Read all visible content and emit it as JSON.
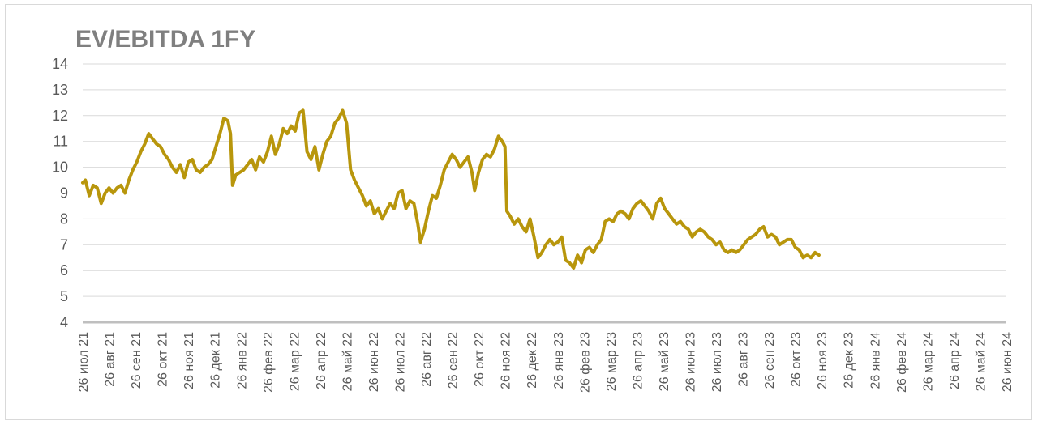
{
  "chart_data": {
    "type": "line",
    "title": "EV/EBITDA 1FY",
    "ylim": [
      4,
      14
    ],
    "yticks": [
      "4",
      "5",
      "6",
      "7",
      "8",
      "9",
      "10",
      "11",
      "12",
      "13",
      "14"
    ],
    "grid": true,
    "line_color": "#b8960c",
    "x_categories": [
      "26 июл 21",
      "26 авг 21",
      "26 сен 21",
      "26 окт 21",
      "26 ноя 21",
      "26 дек 21",
      "26 янв 22",
      "26 фев 22",
      "26 мар 22",
      "26 апр 22",
      "26 май 22",
      "26 июн 22",
      "26 июл 22",
      "26 авг 22",
      "26 сен 22",
      "26 окт 22",
      "26 ноя 22",
      "26 дек 22",
      "26 янв 23",
      "26 фев 23",
      "26 мар 23",
      "26 апр 23",
      "26 май 23",
      "26 июн 23",
      "26 июл 23",
      "26 авг 23",
      "26 сен 23",
      "26 окт 23",
      "26 ноя 23",
      "26 дек 23",
      "26 янв 24",
      "26 фев 24",
      "26 мар 24",
      "26 апр 24",
      "26 май 24",
      "26 июн 24"
    ],
    "series": [
      {
        "values": [
          [
            0.0,
            9.4
          ],
          [
            0.1,
            9.5
          ],
          [
            0.25,
            8.9
          ],
          [
            0.4,
            9.3
          ],
          [
            0.55,
            9.2
          ],
          [
            0.7,
            8.6
          ],
          [
            0.85,
            9.0
          ],
          [
            1.0,
            9.2
          ],
          [
            1.15,
            9.0
          ],
          [
            1.3,
            9.2
          ],
          [
            1.45,
            9.3
          ],
          [
            1.6,
            9.0
          ],
          [
            1.75,
            9.5
          ],
          [
            1.9,
            9.9
          ],
          [
            2.05,
            10.2
          ],
          [
            2.2,
            10.6
          ],
          [
            2.35,
            10.9
          ],
          [
            2.5,
            11.3
          ],
          [
            2.65,
            11.1
          ],
          [
            2.8,
            10.9
          ],
          [
            2.95,
            10.8
          ],
          [
            3.1,
            10.5
          ],
          [
            3.25,
            10.3
          ],
          [
            3.4,
            10.0
          ],
          [
            3.55,
            9.8
          ],
          [
            3.7,
            10.1
          ],
          [
            3.85,
            9.6
          ],
          [
            4.0,
            10.2
          ],
          [
            4.15,
            10.3
          ],
          [
            4.3,
            9.9
          ],
          [
            4.45,
            9.8
          ],
          [
            4.6,
            10.0
          ],
          [
            4.75,
            10.1
          ],
          [
            4.9,
            10.3
          ],
          [
            5.05,
            10.8
          ],
          [
            5.2,
            11.3
          ],
          [
            5.35,
            11.9
          ],
          [
            5.5,
            11.8
          ],
          [
            5.6,
            11.3
          ],
          [
            5.68,
            9.3
          ],
          [
            5.8,
            9.7
          ],
          [
            5.95,
            9.8
          ],
          [
            6.1,
            9.9
          ],
          [
            6.25,
            10.1
          ],
          [
            6.4,
            10.3
          ],
          [
            6.55,
            9.9
          ],
          [
            6.7,
            10.4
          ],
          [
            6.85,
            10.2
          ],
          [
            7.0,
            10.6
          ],
          [
            7.15,
            11.2
          ],
          [
            7.3,
            10.5
          ],
          [
            7.45,
            10.9
          ],
          [
            7.6,
            11.5
          ],
          [
            7.75,
            11.3
          ],
          [
            7.9,
            11.6
          ],
          [
            8.05,
            11.4
          ],
          [
            8.2,
            12.1
          ],
          [
            8.35,
            12.2
          ],
          [
            8.5,
            10.6
          ],
          [
            8.65,
            10.3
          ],
          [
            8.8,
            10.8
          ],
          [
            8.95,
            9.9
          ],
          [
            9.1,
            10.5
          ],
          [
            9.25,
            11.0
          ],
          [
            9.4,
            11.2
          ],
          [
            9.55,
            11.7
          ],
          [
            9.7,
            11.9
          ],
          [
            9.85,
            12.2
          ],
          [
            10.0,
            11.7
          ],
          [
            10.15,
            9.9
          ],
          [
            10.3,
            9.5
          ],
          [
            10.45,
            9.2
          ],
          [
            10.6,
            8.9
          ],
          [
            10.75,
            8.5
          ],
          [
            10.9,
            8.7
          ],
          [
            11.05,
            8.2
          ],
          [
            11.2,
            8.4
          ],
          [
            11.35,
            8.0
          ],
          [
            11.5,
            8.3
          ],
          [
            11.65,
            8.6
          ],
          [
            11.8,
            8.4
          ],
          [
            11.95,
            9.0
          ],
          [
            12.1,
            9.1
          ],
          [
            12.25,
            8.4
          ],
          [
            12.4,
            8.7
          ],
          [
            12.55,
            8.6
          ],
          [
            12.7,
            7.8
          ],
          [
            12.8,
            7.1
          ],
          [
            12.95,
            7.6
          ],
          [
            13.1,
            8.3
          ],
          [
            13.25,
            8.9
          ],
          [
            13.4,
            8.8
          ],
          [
            13.55,
            9.3
          ],
          [
            13.7,
            9.9
          ],
          [
            13.85,
            10.2
          ],
          [
            14.0,
            10.5
          ],
          [
            14.15,
            10.3
          ],
          [
            14.3,
            10.0
          ],
          [
            14.45,
            10.2
          ],
          [
            14.6,
            10.4
          ],
          [
            14.75,
            9.8
          ],
          [
            14.85,
            9.1
          ],
          [
            15.0,
            9.8
          ],
          [
            15.15,
            10.3
          ],
          [
            15.3,
            10.5
          ],
          [
            15.45,
            10.4
          ],
          [
            15.6,
            10.7
          ],
          [
            15.75,
            11.2
          ],
          [
            15.9,
            11.0
          ],
          [
            16.0,
            10.8
          ],
          [
            16.07,
            8.3
          ],
          [
            16.2,
            8.1
          ],
          [
            16.35,
            7.8
          ],
          [
            16.5,
            8.0
          ],
          [
            16.65,
            7.7
          ],
          [
            16.8,
            7.5
          ],
          [
            16.95,
            8.0
          ],
          [
            17.1,
            7.3
          ],
          [
            17.25,
            6.5
          ],
          [
            17.4,
            6.7
          ],
          [
            17.55,
            7.0
          ],
          [
            17.7,
            7.2
          ],
          [
            17.85,
            7.0
          ],
          [
            18.0,
            7.1
          ],
          [
            18.15,
            7.3
          ],
          [
            18.3,
            6.4
          ],
          [
            18.45,
            6.3
          ],
          [
            18.6,
            6.1
          ],
          [
            18.75,
            6.6
          ],
          [
            18.9,
            6.3
          ],
          [
            19.05,
            6.8
          ],
          [
            19.2,
            6.9
          ],
          [
            19.35,
            6.7
          ],
          [
            19.5,
            7.0
          ],
          [
            19.65,
            7.2
          ],
          [
            19.8,
            7.9
          ],
          [
            19.95,
            8.0
          ],
          [
            20.1,
            7.9
          ],
          [
            20.25,
            8.2
          ],
          [
            20.4,
            8.3
          ],
          [
            20.55,
            8.2
          ],
          [
            20.7,
            8.0
          ],
          [
            20.85,
            8.4
          ],
          [
            21.0,
            8.6
          ],
          [
            21.15,
            8.7
          ],
          [
            21.3,
            8.5
          ],
          [
            21.45,
            8.3
          ],
          [
            21.6,
            8.0
          ],
          [
            21.75,
            8.6
          ],
          [
            21.9,
            8.8
          ],
          [
            22.05,
            8.4
          ],
          [
            22.2,
            8.2
          ],
          [
            22.35,
            8.0
          ],
          [
            22.5,
            7.8
          ],
          [
            22.65,
            7.9
          ],
          [
            22.8,
            7.7
          ],
          [
            22.95,
            7.6
          ],
          [
            23.1,
            7.3
          ],
          [
            23.25,
            7.5
          ],
          [
            23.4,
            7.6
          ],
          [
            23.55,
            7.5
          ],
          [
            23.7,
            7.3
          ],
          [
            23.85,
            7.2
          ],
          [
            24.0,
            7.0
          ],
          [
            24.15,
            7.1
          ],
          [
            24.3,
            6.8
          ],
          [
            24.45,
            6.7
          ],
          [
            24.6,
            6.8
          ],
          [
            24.75,
            6.7
          ],
          [
            24.9,
            6.8
          ],
          [
            25.05,
            7.0
          ],
          [
            25.2,
            7.2
          ],
          [
            25.35,
            7.3
          ],
          [
            25.5,
            7.4
          ],
          [
            25.65,
            7.6
          ],
          [
            25.8,
            7.7
          ],
          [
            25.95,
            7.3
          ],
          [
            26.1,
            7.4
          ],
          [
            26.25,
            7.3
          ],
          [
            26.4,
            7.0
          ],
          [
            26.55,
            7.1
          ],
          [
            26.7,
            7.2
          ],
          [
            26.85,
            7.2
          ],
          [
            27.0,
            6.9
          ],
          [
            27.15,
            6.8
          ],
          [
            27.3,
            6.5
          ],
          [
            27.45,
            6.6
          ],
          [
            27.6,
            6.5
          ],
          [
            27.75,
            6.7
          ],
          [
            27.9,
            6.6
          ]
        ]
      }
    ]
  }
}
